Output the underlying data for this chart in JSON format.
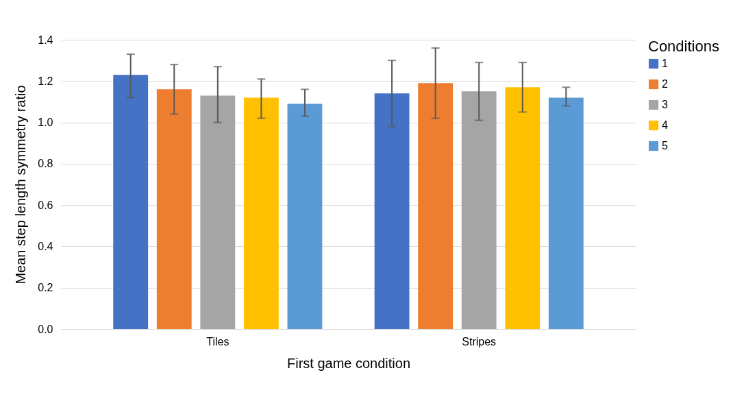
{
  "chart_data": {
    "type": "bar",
    "xlabel": "First game condition",
    "ylabel": "Mean step length symmetry ratio",
    "legend_title": "Conditions",
    "categories": [
      "Tiles",
      "Stripes"
    ],
    "series": [
      {
        "name": "1",
        "color": "#4472c4",
        "values": [
          1.23,
          1.14
        ],
        "errors": [
          [
            1.12,
            1.33
          ],
          [
            0.98,
            1.3
          ]
        ]
      },
      {
        "name": "2",
        "color": "#ed7d31",
        "values": [
          1.16,
          1.19
        ],
        "errors": [
          [
            1.04,
            1.28
          ],
          [
            1.02,
            1.36
          ]
        ]
      },
      {
        "name": "3",
        "color": "#a5a5a5",
        "values": [
          1.13,
          1.15
        ],
        "errors": [
          [
            1.0,
            1.27
          ],
          [
            1.01,
            1.29
          ]
        ]
      },
      {
        "name": "4",
        "color": "#ffc000",
        "values": [
          1.12,
          1.17
        ],
        "errors": [
          [
            1.02,
            1.21
          ],
          [
            1.05,
            1.29
          ]
        ]
      },
      {
        "name": "5",
        "color": "#5b9bd5",
        "values": [
          1.09,
          1.12
        ],
        "errors": [
          [
            1.03,
            1.16
          ],
          [
            1.08,
            1.17
          ]
        ]
      }
    ],
    "ylim": [
      0,
      1.4
    ],
    "yticks": [
      {
        "value": 0,
        "label": "0.0"
      },
      0.2,
      0.4,
      0.6,
      0.8,
      {
        "value": 1,
        "label": "1.0"
      },
      1.2,
      1.4
    ],
    "grid": "y",
    "legend": "right"
  }
}
